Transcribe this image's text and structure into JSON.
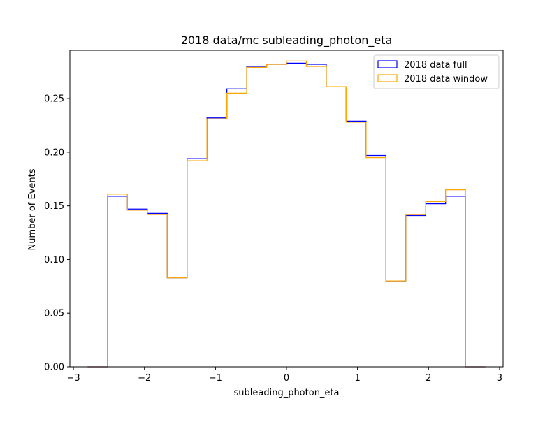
{
  "chart_data": {
    "type": "step-histogram",
    "title": "2018 data/mc subleading_photon_eta",
    "xlabel": "subleading_photon_eta",
    "ylabel": "Number of Events",
    "xlim": [
      -3.05,
      3.05
    ],
    "ylim": [
      0,
      0.295
    ],
    "xticks": [
      -3,
      -2,
      -1,
      0,
      1,
      2,
      3
    ],
    "xtick_labels": [
      "−3",
      "−2",
      "−1",
      "0",
      "1",
      "2",
      "3"
    ],
    "yticks": [
      0,
      0.05,
      0.1,
      0.15,
      0.2,
      0.25
    ],
    "ytick_labels": [
      "0.00",
      "0.05",
      "0.10",
      "0.15",
      "0.20",
      "0.25"
    ],
    "legend_position": "top-right",
    "grid": false,
    "bin_edges": [
      -2.8,
      -2.52,
      -2.24,
      -1.96,
      -1.68,
      -1.4,
      -1.12,
      -0.84,
      -0.56,
      -0.28,
      0.0,
      0.28,
      0.56,
      0.84,
      1.12,
      1.4,
      1.68,
      1.96,
      2.24,
      2.52,
      2.8
    ],
    "series": [
      {
        "name": "2018 data full",
        "color": "#0000ff",
        "values": [
          0.0,
          0.159,
          0.147,
          0.143,
          0.083,
          0.194,
          0.232,
          0.259,
          0.28,
          0.282,
          0.283,
          0.282,
          0.261,
          0.229,
          0.197,
          0.08,
          0.141,
          0.152,
          0.159,
          0.0
        ]
      },
      {
        "name": "2018 data window",
        "color": "#ffa500",
        "values": [
          0.0,
          0.161,
          0.146,
          0.142,
          0.083,
          0.192,
          0.231,
          0.255,
          0.279,
          0.282,
          0.285,
          0.28,
          0.261,
          0.228,
          0.195,
          0.08,
          0.142,
          0.154,
          0.165,
          0.0
        ]
      }
    ]
  }
}
